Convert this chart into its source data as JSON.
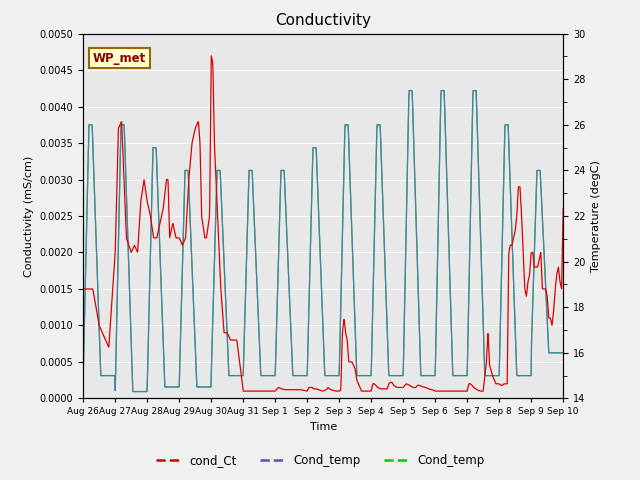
{
  "title": "Conductivity",
  "xlabel": "Time",
  "ylabel_left": "Conductivity (mS/cm)",
  "ylabel_right": "Temperature (degC)",
  "ylim_left": [
    0.0,
    0.005
  ],
  "ylim_right": [
    14,
    30
  ],
  "bg_color": "#f0f0f0",
  "plot_bg_color": "#e8e8e8",
  "legend_label": "WP_met",
  "legend_entries": [
    "cond_Ct",
    "Cond_temp",
    "Cond_temp"
  ],
  "legend_colors": [
    "#cc0000",
    "#5555aa",
    "#00cc00"
  ],
  "xtick_labels": [
    "Aug 26",
    "Aug 27",
    "Aug 28",
    "Aug 29",
    "Aug 30",
    "Aug 31",
    "Sep 1",
    "Sep 2",
    "Sep 3",
    "Sep 4",
    "Sep 5",
    "Sep 6",
    "Sep 7",
    "Sep 8",
    "Sep 9",
    "Sep 10"
  ],
  "red_line_color": "#dd0000",
  "blue_line_color": "#5577bb",
  "green_line_color": "#00dd00",
  "n_days": 15
}
